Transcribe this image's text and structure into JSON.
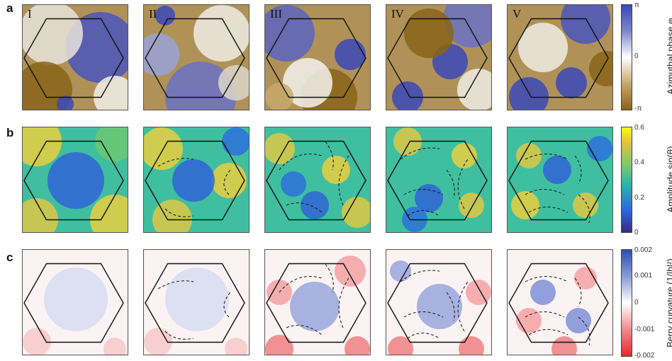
{
  "row_labels": [
    "a",
    "b",
    "c"
  ],
  "column_labels": [
    "I",
    "II",
    "III",
    "IV",
    "V"
  ],
  "colorbars": {
    "phase": {
      "title": "Azimuthal phase φ",
      "ticks": [
        "π",
        "0",
        "-π"
      ],
      "colors": [
        "#3b48b8",
        "#ffffff",
        "#8a6418"
      ]
    },
    "amplitude": {
      "title": "Amplitude sin(θ)",
      "ticks": [
        "0.6",
        "0.4",
        "0.2",
        "0"
      ],
      "colors": [
        "#f9fb0e",
        "#28b4a8",
        "#2c6be0",
        "#352a87"
      ]
    },
    "berry": {
      "title": "Berry curvature (1/|b|²)",
      "ticks": [
        "0.002",
        "0.001",
        "0",
        "-0.001",
        "-0.002"
      ],
      "colors": [
        "#2b4fb5",
        "#ffffff",
        "#e8262c"
      ]
    }
  }
}
